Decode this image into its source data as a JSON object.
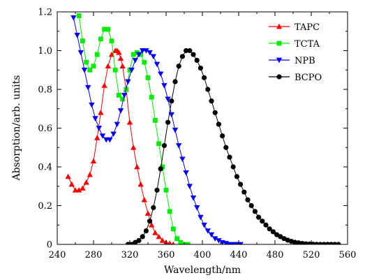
{
  "chart_data": {
    "type": "line",
    "xlabel": "Wavelength/nm",
    "ylabel": "Absorption/arb. units",
    "xlim": [
      240,
      560
    ],
    "ylim": [
      0,
      1.2
    ],
    "xticks": [
      "240",
      "280",
      "320",
      "360",
      "400",
      "440",
      "480",
      "520",
      "560"
    ],
    "yticks": [
      "0",
      "0.2",
      "0.4",
      "0.6",
      "0.8",
      "1.0",
      "1.2"
    ],
    "legend_position": "top-right",
    "grid": false,
    "series": [
      {
        "name": "TAPC",
        "color": "#ff0000",
        "marker": "triangle-up",
        "x": [
          252,
          256,
          260,
          264,
          268,
          272,
          276,
          280,
          284,
          288,
          292,
          296,
          300,
          304,
          306,
          308,
          310,
          312,
          316,
          320,
          324,
          328,
          332,
          336,
          340,
          344,
          348,
          352,
          356,
          360,
          364,
          368
        ],
        "y": [
          0.35,
          0.31,
          0.28,
          0.28,
          0.29,
          0.32,
          0.36,
          0.43,
          0.55,
          0.68,
          0.82,
          0.92,
          0.98,
          1.0,
          1.0,
          0.99,
          0.96,
          0.92,
          0.8,
          0.63,
          0.5,
          0.4,
          0.31,
          0.23,
          0.16,
          0.1,
          0.06,
          0.04,
          0.02,
          0.01,
          0.005,
          0.0
        ]
      },
      {
        "name": "TCTA",
        "color": "#00ee00",
        "marker": "square",
        "x": [
          264,
          268,
          272,
          276,
          280,
          284,
          288,
          292,
          296,
          300,
          304,
          308,
          312,
          316,
          320,
          324,
          328,
          332,
          336,
          340,
          344,
          348,
          352,
          356,
          360,
          364,
          368,
          372,
          376,
          380,
          384
        ],
        "y": [
          1.18,
          1.05,
          0.94,
          0.9,
          0.92,
          0.98,
          1.06,
          1.11,
          1.11,
          1.05,
          0.9,
          0.77,
          0.75,
          0.8,
          0.9,
          0.98,
          0.99,
          0.98,
          0.94,
          0.86,
          0.76,
          0.64,
          0.52,
          0.4,
          0.28,
          0.17,
          0.08,
          0.03,
          0.01,
          0.0,
          0.0
        ]
      },
      {
        "name": "NPB",
        "color": "#0000ff",
        "marker": "triangle-down",
        "x": [
          258,
          262,
          266,
          270,
          274,
          278,
          282,
          286,
          290,
          294,
          298,
          302,
          306,
          310,
          314,
          318,
          322,
          326,
          330,
          334,
          338,
          342,
          346,
          350,
          354,
          358,
          362,
          366,
          370,
          374,
          378,
          382,
          386,
          390,
          394,
          398,
          402,
          406,
          410,
          414,
          418,
          422,
          426,
          430,
          434,
          438,
          442
        ],
        "y": [
          1.17,
          1.08,
          0.99,
          0.9,
          0.81,
          0.72,
          0.65,
          0.6,
          0.56,
          0.54,
          0.54,
          0.57,
          0.62,
          0.69,
          0.77,
          0.84,
          0.9,
          0.95,
          0.98,
          1.0,
          1.0,
          0.99,
          0.97,
          0.93,
          0.88,
          0.82,
          0.75,
          0.67,
          0.59,
          0.51,
          0.44,
          0.37,
          0.3,
          0.24,
          0.19,
          0.14,
          0.1,
          0.07,
          0.05,
          0.03,
          0.02,
          0.01,
          0.005,
          0.0,
          0.0,
          0.0,
          0.0
        ]
      },
      {
        "name": "BCPO",
        "color": "#000000",
        "marker": "circle",
        "x": [
          318,
          322,
          326,
          330,
          334,
          338,
          342,
          346,
          350,
          354,
          358,
          362,
          366,
          370,
          374,
          378,
          382,
          386,
          390,
          394,
          398,
          402,
          406,
          410,
          414,
          418,
          422,
          426,
          430,
          434,
          438,
          442,
          446,
          450,
          454,
          458,
          462,
          466,
          470,
          474,
          478,
          482,
          486,
          490,
          494,
          498,
          502,
          506,
          510,
          514,
          518,
          522,
          526,
          530,
          534,
          538,
          542,
          546,
          550
        ],
        "y": [
          0.0,
          0.0,
          0.01,
          0.02,
          0.04,
          0.07,
          0.12,
          0.19,
          0.28,
          0.39,
          0.51,
          0.63,
          0.74,
          0.84,
          0.92,
          0.97,
          1.0,
          1.0,
          0.98,
          0.95,
          0.91,
          0.86,
          0.8,
          0.74,
          0.68,
          0.62,
          0.56,
          0.5,
          0.45,
          0.4,
          0.35,
          0.31,
          0.27,
          0.23,
          0.2,
          0.17,
          0.14,
          0.12,
          0.1,
          0.08,
          0.065,
          0.05,
          0.04,
          0.03,
          0.022,
          0.016,
          0.011,
          0.008,
          0.005,
          0.003,
          0.002,
          0.001,
          0.0,
          0.0,
          0.0,
          0.0,
          0.0,
          0.0,
          0.0
        ]
      }
    ]
  }
}
